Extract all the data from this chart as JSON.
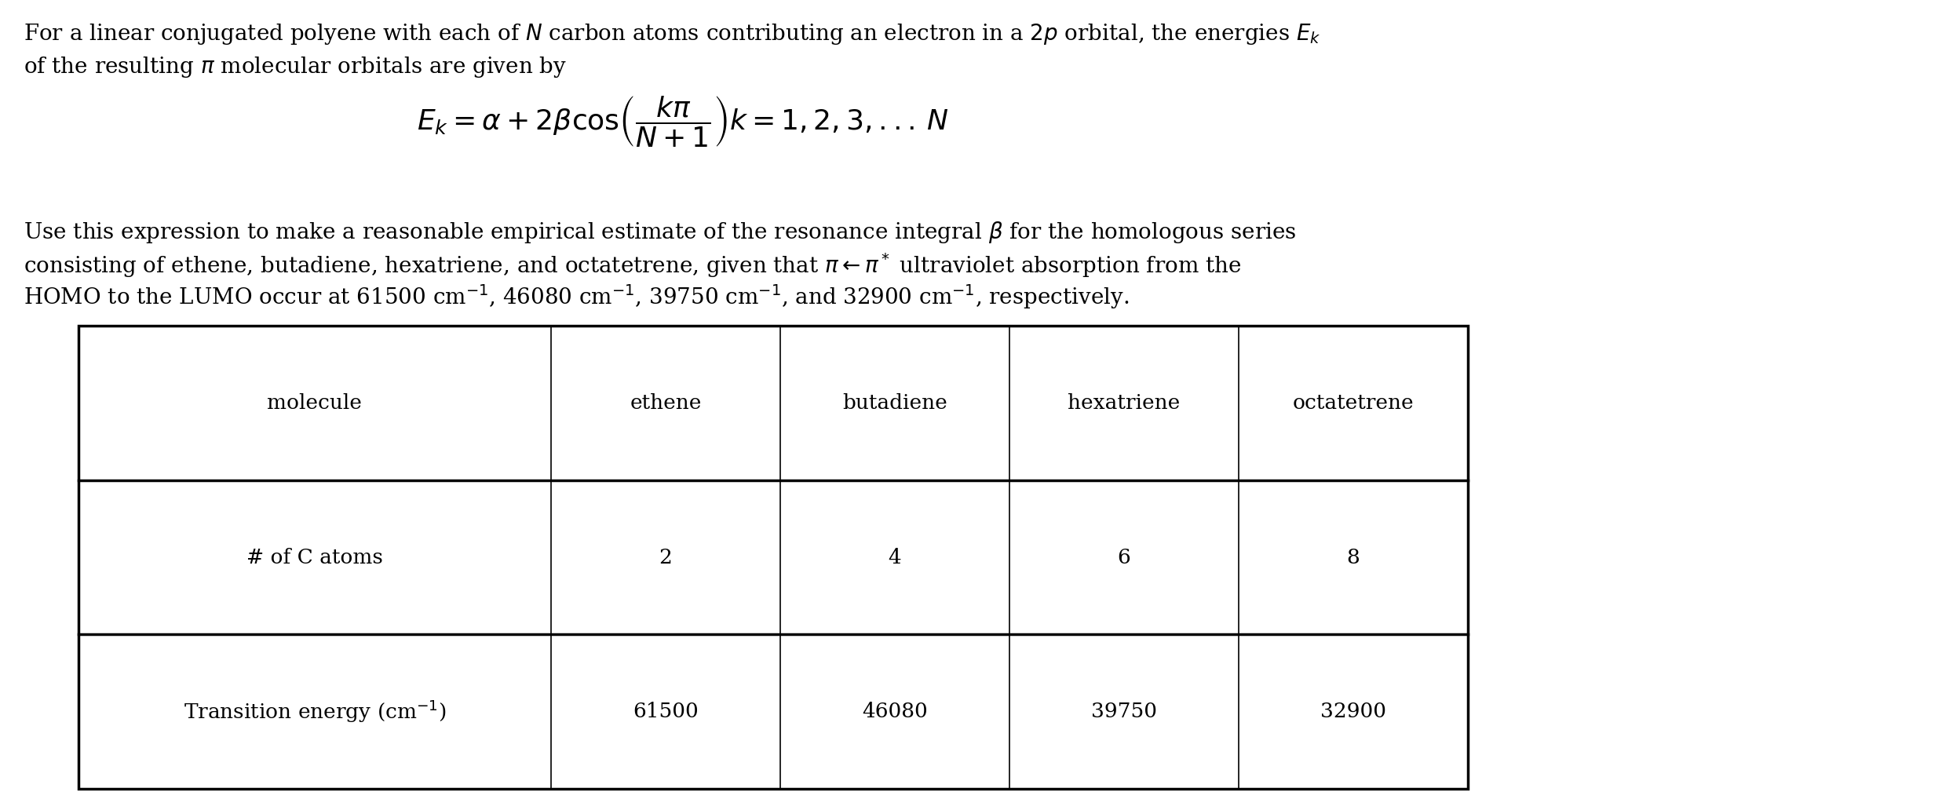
{
  "background_color": "#ffffff",
  "fig_width": 24.74,
  "fig_height": 10.18,
  "dpi": 100,
  "para1_line1": "For a linear conjugated polyene with each of $N$ carbon atoms contributing an electron in a $2p$ orbital, the energies $E_k$",
  "para1_line2": "of the resulting $\\pi$ molecular orbitals are given by",
  "para2_line1": "Use this expression to make a reasonable empirical estimate of the resonance integral $\\beta$ for the homologous series",
  "para2_line2": "consisting of ethene, butadiene, hexatriene, and octatetrene, given that $\\pi\\leftarrow\\pi^*$ ultraviolet absorption from the",
  "para2_line3": "HOMO to the LUMO occur at 61500 cm$^{-1}$, 46080 cm$^{-1}$, 39750 cm$^{-1}$, and 32900 cm$^{-1}$, respectively.",
  "table_col_labels": [
    "molecule",
    "ethene",
    "butadiene",
    "hexatriene",
    "octatetrene"
  ],
  "table_rows": [
    [
      "# of C atoms",
      "2",
      "4",
      "6",
      "8"
    ],
    [
      "Transition energy (cm$^{-1}$)",
      "61500",
      "46080",
      "39750",
      "32900"
    ]
  ],
  "font_size_para": 20,
  "font_size_formula": 26,
  "font_size_table": 19,
  "text_color": "#000000"
}
